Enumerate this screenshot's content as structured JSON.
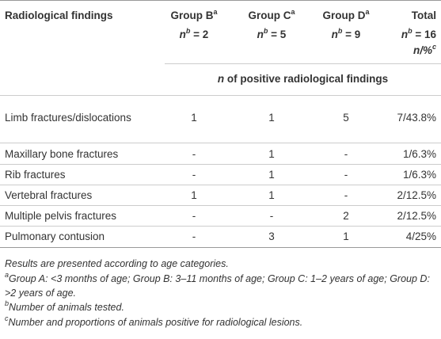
{
  "header": {
    "columns": [
      {
        "name": "Radiological findings"
      },
      {
        "name": "Group B",
        "name_sup": "a",
        "n": "n",
        "n_sup": "b",
        "n_value": "= 2"
      },
      {
        "name": "Group C",
        "name_sup": "a",
        "n": "n",
        "n_sup": "b",
        "n_value": "= 5"
      },
      {
        "name": "Group D",
        "name_sup": "a",
        "n": "n",
        "n_sup": "b",
        "n_value": "= 9"
      },
      {
        "name": "Total",
        "n": "n",
        "n_sup": "b",
        "n_value": "= 16",
        "extra": "n/%",
        "extra_sup": "c"
      }
    ],
    "subheader": {
      "n": "n",
      "text": "of positive radiological findings"
    }
  },
  "table": {
    "rows": [
      [
        "Limb fractures/dislocations",
        "1",
        "1",
        "5",
        "7/43.8%"
      ],
      [
        "Maxillary bone fractures",
        "-",
        "1",
        "-",
        "1/6.3%"
      ],
      [
        "Rib fractures",
        "-",
        "1",
        "-",
        "1/6.3%"
      ],
      [
        "Vertebral fractures",
        "1",
        "1",
        "-",
        "2/12.5%"
      ],
      [
        "Multiple pelvis fractures",
        "-",
        "-",
        "2",
        "2/12.5%"
      ],
      [
        "Pulmonary contusion",
        "-",
        "3",
        "1",
        "4/25%"
      ]
    ]
  },
  "footnotes": [
    {
      "text": "Results are presented according to age categories."
    },
    {
      "sup": "a",
      "text": "Group A: <3 months of age; Group B: 3–11 months of age; Group C: 1–2 years of age; Group D: >2 years of age."
    },
    {
      "sup": "b",
      "text": "Number of animals tested."
    },
    {
      "sup": "c",
      "text": "Number and proportions of animals positive for radiological lesions."
    }
  ]
}
